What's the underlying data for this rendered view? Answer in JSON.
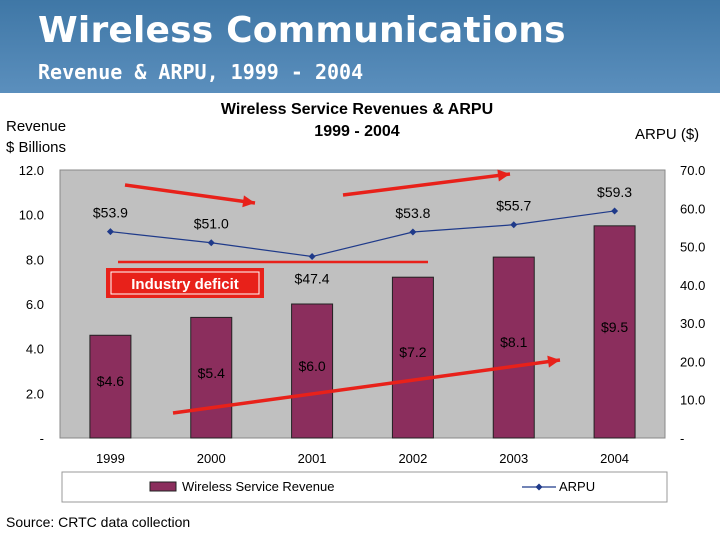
{
  "slide": {
    "title": "Wireless Communications",
    "subtitle": "Revenue & ARPU, 1999 - 2004",
    "source": "Source: CRTC data collection",
    "annotation": "Industry deficit"
  },
  "colors": {
    "header_bg": "#4a80b0",
    "bar": "#8b2e5d",
    "line": "#1f3a8a",
    "plot_bg": "#c0c0c0",
    "arrow": "#e8211a"
  },
  "chart_data": {
    "type": "bar",
    "title": "Wireless Service Revenues & ARPU",
    "subtitle": "1999 - 2004",
    "ylabel": [
      "Revenue",
      "$ Billions"
    ],
    "y2label": "ARPU ($)",
    "categories": [
      "1999",
      "2000",
      "2001",
      "2002",
      "2003",
      "2004"
    ],
    "ylim": [
      0,
      12
    ],
    "y2lim": [
      0,
      70
    ],
    "y_ticks": [
      "12.0",
      "10.0",
      "8.0",
      "6.0",
      "4.0",
      "2.0",
      "-"
    ],
    "y2_ticks": [
      "70.0",
      "60.0",
      "50.0",
      "40.0",
      "30.0",
      "20.0",
      "10.0",
      "-"
    ],
    "series": [
      {
        "name": "Wireless Service Revenue",
        "type": "bar",
        "axis": "left",
        "values": [
          4.6,
          5.4,
          6.0,
          7.2,
          8.1,
          9.5
        ],
        "labels": [
          "$4.6",
          "$5.4",
          "$6.0",
          "$7.2",
          "$8.1",
          "$9.5"
        ]
      },
      {
        "name": "ARPU",
        "type": "line",
        "axis": "right",
        "values": [
          53.9,
          51.0,
          47.4,
          53.8,
          55.7,
          59.3
        ],
        "labels": [
          "$53.9",
          "$51.0",
          "$47.4",
          "$53.8",
          "$55.7",
          "$59.3"
        ]
      }
    ],
    "legend": "bottom"
  }
}
